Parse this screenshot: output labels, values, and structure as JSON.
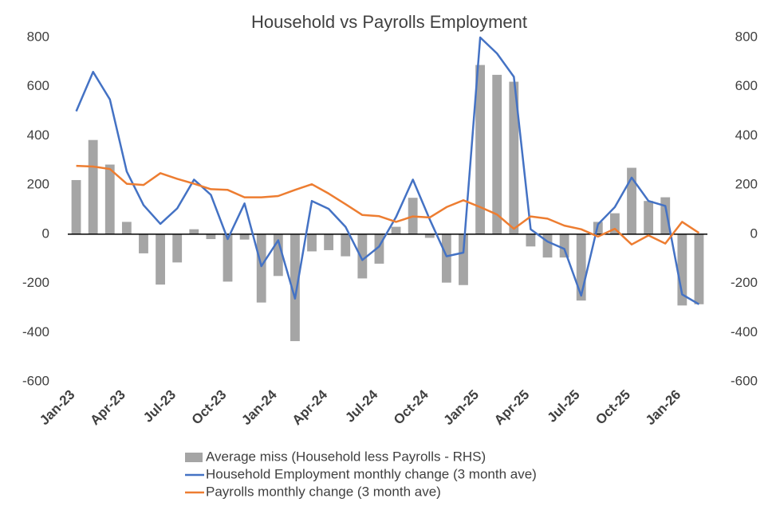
{
  "chart_data": {
    "type": "combo",
    "title": "Household vs Payrolls Employment",
    "categories": [
      "Jan-23",
      null,
      null,
      "Apr-23",
      null,
      null,
      "Jul-23",
      null,
      null,
      "Oct-23",
      null,
      null,
      "Jan-24",
      null,
      null,
      "Apr-24",
      null,
      null,
      "Jul-24",
      null,
      null,
      "Oct-24",
      null,
      null,
      "Jan-25",
      null,
      null,
      "Apr-25",
      null,
      null,
      "Jul-25",
      null,
      null,
      "Oct-25",
      null,
      null,
      "Jan-26",
      null
    ],
    "series": [
      {
        "name": "Average miss (Household less Payrolls - RHS)",
        "type": "bar",
        "axis": "y2",
        "color": "#a5a5a5",
        "values": [
          220,
          383,
          283,
          50,
          -78,
          -205,
          -115,
          20,
          -20,
          -193,
          -22,
          -278,
          -170,
          -435,
          -70,
          -65,
          -90,
          -180,
          -120,
          30,
          148,
          -15,
          -197,
          -207,
          688,
          648,
          620,
          -50,
          -95,
          -95,
          -270,
          50,
          85,
          270,
          135,
          150,
          -290,
          -285
        ]
      },
      {
        "name": "Household Employment monthly change (3 month ave)",
        "type": "line",
        "color": "#4472c4",
        "values": [
          500,
          660,
          548,
          255,
          118,
          42,
          105,
          222,
          160,
          -20,
          125,
          -130,
          -25,
          -262,
          135,
          103,
          30,
          -105,
          -50,
          70,
          222,
          60,
          -90,
          -75,
          800,
          735,
          640,
          20,
          -30,
          -60,
          -250,
          40,
          110,
          230,
          135,
          115,
          -245,
          -285
        ]
      },
      {
        "name": "Payrolls monthly change (3 month ave)",
        "type": "line",
        "color": "#ed7d31",
        "values": [
          278,
          275,
          265,
          205,
          200,
          248,
          225,
          205,
          183,
          180,
          150,
          150,
          155,
          180,
          203,
          165,
          122,
          78,
          73,
          50,
          72,
          68,
          110,
          138,
          110,
          80,
          22,
          72,
          63,
          35,
          20,
          -10,
          22,
          -42,
          -5,
          -38,
          50,
          5
        ]
      }
    ],
    "ylim": [
      -600,
      800
    ],
    "yticks": [
      -600,
      -400,
      -200,
      0,
      200,
      400,
      600,
      800
    ],
    "y2lim": [
      -600,
      800
    ],
    "y2ticks": [
      -600,
      -400,
      -200,
      0,
      200,
      400,
      600,
      800
    ],
    "grid": false
  }
}
